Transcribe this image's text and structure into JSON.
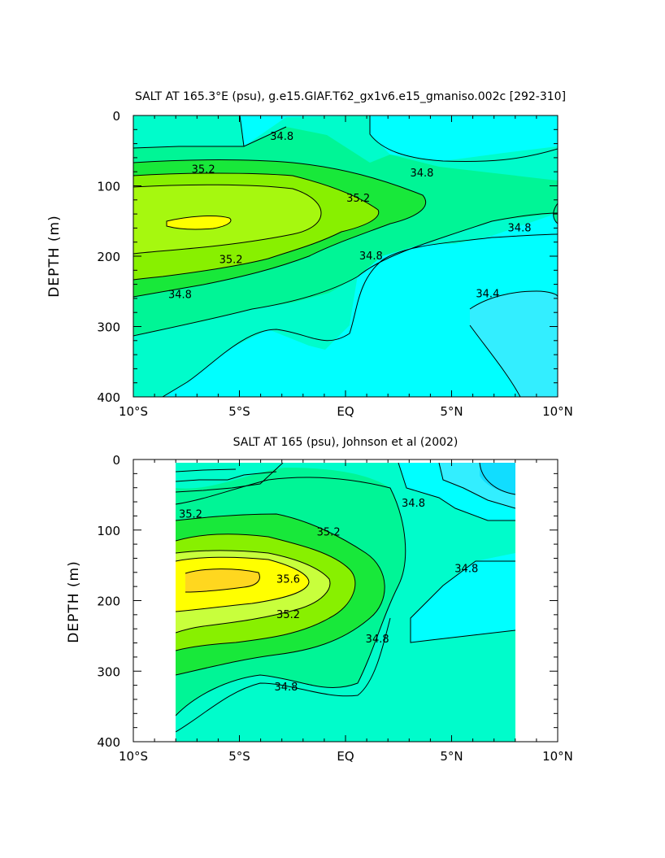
{
  "colors": {
    "fill_34.4": "#00ffff",
    "fill_34.4_inner": "#33eeff",
    "fill_34.8": "#00fccb",
    "fill_35.0": "#00f596",
    "fill_35.2": "#18e83a",
    "fill_35.4": "#88f000",
    "fill_35.6": "#c8ff3c",
    "fill_35.8": "#ffff00",
    "fill_36.0": "#ffd71f",
    "fill_low": "#11ddff",
    "contour_line": "#000000"
  },
  "chart_data": [
    {
      "type": "heatmap",
      "subtype": "filled-contour",
      "title": "SALT AT 165.3°E (psu), g.e15.GIAF.T62_gx1v6.e15_gmaniso.002c [292-310]",
      "ylabel": "DEPTH (m)",
      "xlabel": "",
      "xlim": [
        -10,
        10
      ],
      "ylim": [
        400,
        0
      ],
      "y_inverted": true,
      "x_ticks": [
        {
          "value": -10,
          "label": "10°S"
        },
        {
          "value": -5,
          "label": "5°S"
        },
        {
          "value": 0,
          "label": "EQ"
        },
        {
          "value": 5,
          "label": "5°N"
        },
        {
          "value": 10,
          "label": "10°N"
        }
      ],
      "y_ticks": [
        {
          "value": 0,
          "label": "0"
        },
        {
          "value": 100,
          "label": "100"
        },
        {
          "value": 200,
          "label": "200"
        },
        {
          "value": 300,
          "label": "300"
        },
        {
          "value": 400,
          "label": "400"
        }
      ],
      "contour_labels": [
        {
          "text": "34.8",
          "x": -3.0,
          "y": 30
        },
        {
          "text": "34.8",
          "x": 3.6,
          "y": 82
        },
        {
          "text": "35.2",
          "x": -6.7,
          "y": 77
        },
        {
          "text": "35.2",
          "x": 0.6,
          "y": 118
        },
        {
          "text": "34.8",
          "x": 8.2,
          "y": 160
        },
        {
          "text": "35.2",
          "x": -5.4,
          "y": 205
        },
        {
          "text": "34.8",
          "x": 1.2,
          "y": 200
        },
        {
          "text": "34.8",
          "x": -7.8,
          "y": 255
        },
        {
          "text": "34.4",
          "x": 6.7,
          "y": 254
        }
      ]
    },
    {
      "type": "heatmap",
      "subtype": "filled-contour",
      "title": "SALT AT 165 (psu), Johnson et al (2002)",
      "ylabel": "DEPTH (m)",
      "xlabel": "",
      "xlim": [
        -10,
        10
      ],
      "ylim": [
        400,
        0
      ],
      "y_inverted": true,
      "data_extent_x": [
        -8,
        8
      ],
      "x_ticks": [
        {
          "value": -10,
          "label": "10°S"
        },
        {
          "value": -5,
          "label": "5°S"
        },
        {
          "value": 0,
          "label": "EQ"
        },
        {
          "value": 5,
          "label": "5°N"
        },
        {
          "value": 10,
          "label": "10°N"
        }
      ],
      "y_ticks": [
        {
          "value": 0,
          "label": "0"
        },
        {
          "value": 100,
          "label": "100"
        },
        {
          "value": 200,
          "label": "200"
        },
        {
          "value": 300,
          "label": "300"
        },
        {
          "value": 400,
          "label": "400"
        }
      ],
      "contour_labels": [
        {
          "text": "35.2",
          "x": -7.3,
          "y": 78
        },
        {
          "text": "34.8",
          "x": 3.2,
          "y": 62
        },
        {
          "text": "35.2",
          "x": -0.8,
          "y": 103
        },
        {
          "text": "34.8",
          "x": 5.7,
          "y": 155
        },
        {
          "text": "35.6",
          "x": -2.7,
          "y": 170
        },
        {
          "text": "35.2",
          "x": -2.7,
          "y": 220
        },
        {
          "text": "34.8",
          "x": 1.5,
          "y": 255
        },
        {
          "text": "34.8",
          "x": -2.8,
          "y": 323
        }
      ]
    }
  ]
}
